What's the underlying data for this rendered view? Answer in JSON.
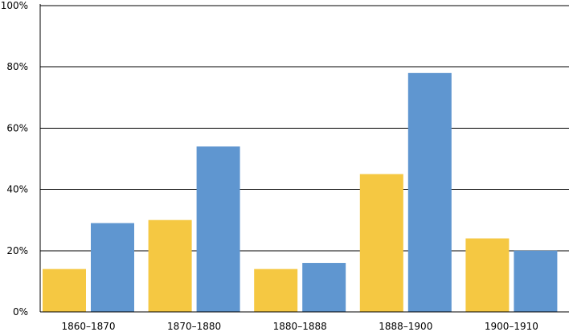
{
  "chart_data": {
    "type": "bar",
    "categories": [
      "1860–1870",
      "1870–1880",
      "1880–1888",
      "1888–1900",
      "1900–1910"
    ],
    "series": [
      {
        "values": [
          14,
          30,
          14,
          45,
          24
        ],
        "color": "#F5C842"
      },
      {
        "values": [
          29,
          54,
          16,
          78,
          20
        ],
        "color": "#5F96D0"
      }
    ],
    "ylim": [
      0,
      100
    ],
    "yticks": [
      0,
      20,
      40,
      60,
      80,
      100
    ],
    "ytick_labels": [
      "0%",
      "20%",
      "40%",
      "60%",
      "80%",
      "100%"
    ],
    "grid": true,
    "title": "",
    "xlabel": "",
    "ylabel": ""
  }
}
